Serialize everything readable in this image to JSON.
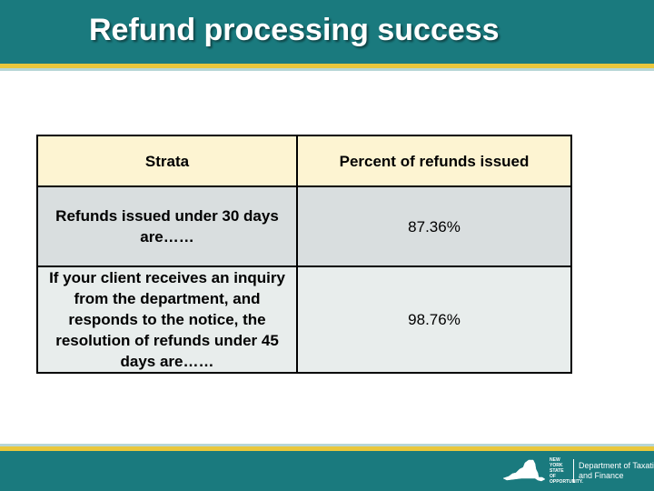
{
  "header": {
    "title": "Refund processing success"
  },
  "table": {
    "headers": [
      "Strata",
      "Percent of refunds issued"
    ],
    "rows": [
      {
        "strata": "Refunds issued under 30 days are……",
        "percent": "87.36%"
      },
      {
        "strata": "If your client receives an inquiry from the department, and responds to the notice, the resolution of refunds under 45 days are……",
        "percent": "98.76%"
      }
    ]
  },
  "footer": {
    "logo_state": "NEW YORK STATE OF OPPORTUNITY.",
    "logo_department": "Department of Taxation and Finance"
  },
  "colors": {
    "header_teal": "#1a7a7e",
    "accent_gold": "#e9c73c",
    "table_header_bg": "#fdf4d2"
  },
  "icons": [
    "new-york-state-outline-icon"
  ]
}
